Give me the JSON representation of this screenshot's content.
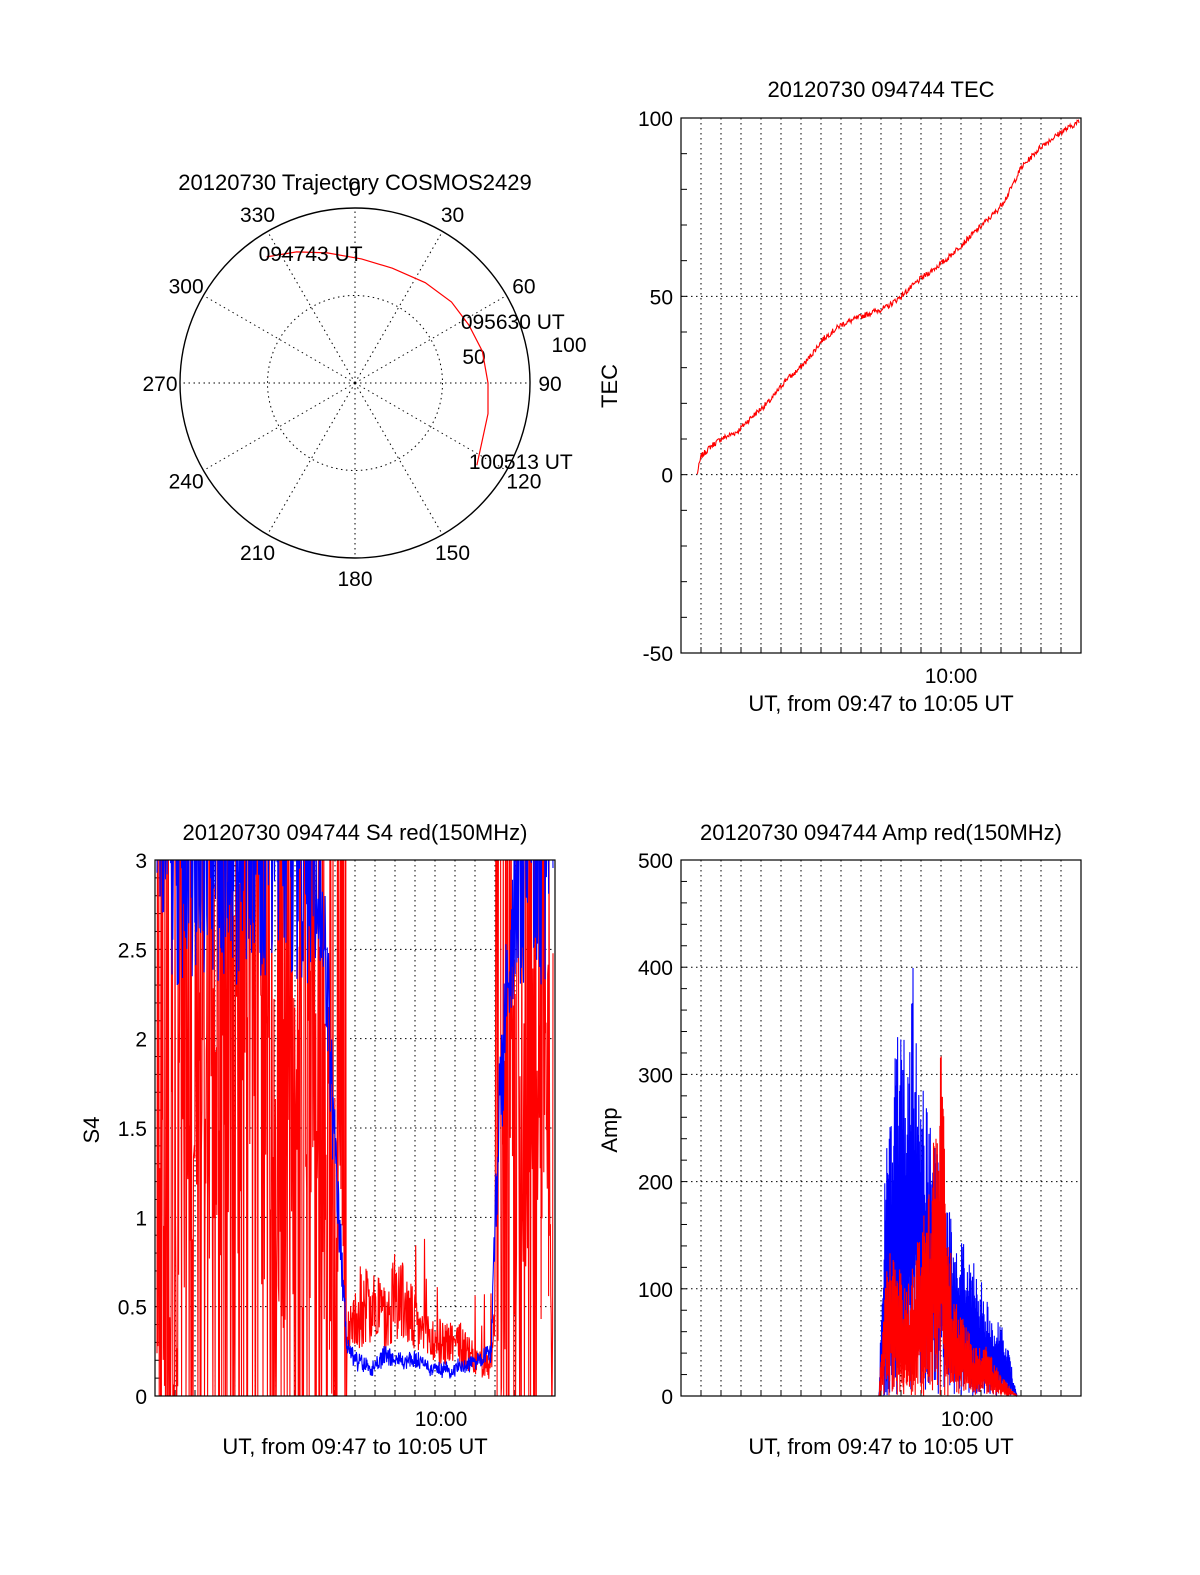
{
  "chart_data": [
    {
      "type": "scatter",
      "subtype": "polar-trajectory",
      "title": "20120730 Trajectory COSMOS2429",
      "angle_labels": [
        "0",
        "30",
        "60",
        "90",
        "120",
        "150",
        "180",
        "210",
        "240",
        "270",
        "300",
        "330"
      ],
      "radius_labels": [
        "50",
        "100"
      ],
      "rlim": [
        0,
        100
      ],
      "grid": true,
      "series": [
        {
          "color": "#ff0000",
          "points": [
            {
              "az": 325,
              "r": 88,
              "label": "094743 UT"
            },
            {
              "az": 336,
              "r": 82
            },
            {
              "az": 348,
              "r": 76
            },
            {
              "az": 3,
              "r": 71
            },
            {
              "az": 18,
              "r": 69
            },
            {
              "az": 35,
              "r": 70
            },
            {
              "az": 50,
              "r": 72
            },
            {
              "az": 63,
              "r": 73,
              "label": "095630 UT"
            },
            {
              "az": 76,
              "r": 75
            },
            {
              "az": 90,
              "r": 76
            },
            {
              "az": 103,
              "r": 78
            },
            {
              "az": 115,
              "r": 80
            },
            {
              "az": 124,
              "r": 84,
              "label": "100513 UT"
            }
          ]
        }
      ]
    },
    {
      "type": "line",
      "title": "20120730 094744 TEC",
      "xlabel": "UT, from 09:47 to 10:05 UT",
      "ylabel": "TEC",
      "xlim": [
        0,
        20
      ],
      "ylim": [
        -50,
        100
      ],
      "yticks": [
        "100",
        "50",
        "0",
        "-50"
      ],
      "xtick_label": "10:00",
      "xtick_at": 13.5,
      "grid": true,
      "series": [
        {
          "color": "#ff0000",
          "x": [
            0.8,
            1.0,
            1.5,
            2,
            2.8,
            3.5,
            4.5,
            5.3,
            5.6,
            6.3,
            7.1,
            8,
            9.3,
            10.3,
            11,
            12,
            13.2,
            14.5,
            15.8,
            16.3,
            17,
            18,
            19,
            19.9
          ],
          "y": [
            0,
            5,
            8,
            10,
            12,
            16,
            21,
            27,
            28,
            32,
            38,
            42,
            45,
            47,
            50,
            55,
            60,
            67,
            74,
            78,
            86,
            92,
            96,
            99
          ]
        }
      ]
    },
    {
      "type": "line",
      "title": "20120730 094744 S4 red(150MHz)",
      "xlabel": "UT, from 09:47 to 10:05 UT",
      "ylabel": "S4",
      "xlim": [
        0,
        20
      ],
      "ylim": [
        0,
        3
      ],
      "yticks": [
        "3",
        "2.5",
        "2",
        "1.5",
        "1",
        "0.5",
        "0"
      ],
      "xtick_label": "10:00",
      "xtick_at": 14.3,
      "grid": true,
      "series": [
        {
          "color": "#ff0000",
          "x": [
            0.1,
            1,
            2,
            3,
            4,
            5,
            6,
            7,
            8,
            8.6,
            9,
            9.6,
            10,
            11,
            11.6,
            12,
            13,
            14,
            15,
            16,
            16.8,
            17.2,
            18,
            19,
            19.9
          ],
          "y": [
            0.5,
            1.0,
            1.5,
            1.8,
            1.9,
            1.8,
            1.5,
            1.4,
            1.7,
            1.4,
            0.9,
            0.35,
            0.45,
            0.55,
            0.4,
            0.6,
            0.4,
            0.3,
            0.3,
            0.2,
            0.15,
            0.8,
            1.5,
            1.5,
            1.4
          ]
        },
        {
          "color": "#0000ff",
          "x": [
            0.1,
            1,
            2,
            3,
            4,
            5,
            6,
            7,
            8,
            8.6,
            9,
            9.6,
            10,
            11,
            11.6,
            12,
            13,
            14,
            15,
            16,
            16.8,
            17.2,
            18,
            19,
            19.9
          ],
          "y": [
            3,
            3,
            3,
            3,
            3,
            3,
            3,
            3,
            2.9,
            2.3,
            1.3,
            0.3,
            0.2,
            0.15,
            0.25,
            0.2,
            0.2,
            0.15,
            0.15,
            0.2,
            0.25,
            1.6,
            2.9,
            3,
            3
          ]
        }
      ]
    },
    {
      "type": "line",
      "title": "20120730 094744 Amp red(150MHz)",
      "xlabel": "UT, from 09:47 to 10:05 UT",
      "ylabel": "Amp",
      "xlim": [
        0,
        20
      ],
      "ylim": [
        0,
        500
      ],
      "yticks": [
        "500",
        "400",
        "300",
        "200",
        "100",
        "0"
      ],
      "xtick_label": "10:00",
      "xtick_at": 14.3,
      "grid": true,
      "series": [
        {
          "color": "#0000ff",
          "x": [
            0.8,
            5,
            9.9,
            10.2,
            10.8,
            11.4,
            11.6,
            11.9,
            12.4,
            13,
            13.5,
            14,
            14.5,
            15,
            15.5,
            16.2,
            16.8,
            20
          ],
          "y": [
            0,
            0,
            0,
            230,
            360,
            320,
            430,
            300,
            270,
            210,
            170,
            150,
            130,
            110,
            80,
            60,
            0,
            0
          ]
        },
        {
          "color": "#ff0000",
          "x": [
            0.8,
            5,
            9.9,
            10.2,
            10.6,
            11.2,
            11.6,
            12.3,
            13,
            13.6,
            14,
            14.7,
            15.2,
            16,
            16.8,
            20
          ],
          "y": [
            0,
            0,
            0,
            120,
            150,
            100,
            130,
            180,
            325,
            90,
            80,
            45,
            50,
            20,
            0,
            0
          ]
        }
      ]
    }
  ]
}
